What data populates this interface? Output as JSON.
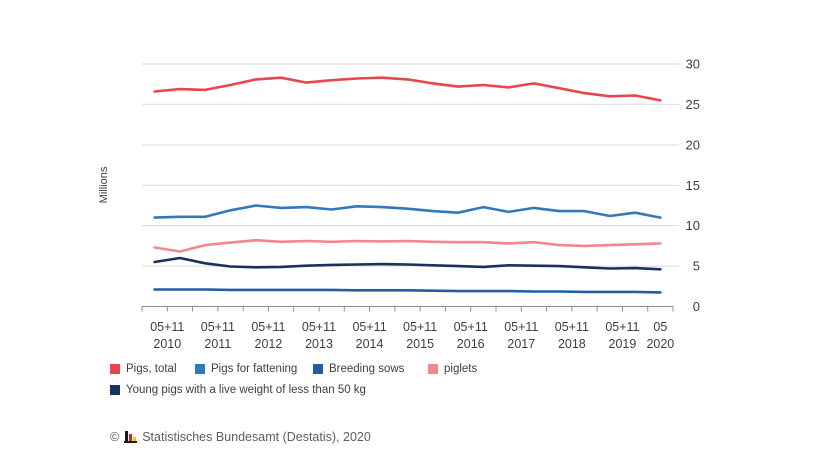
{
  "chart_data": {
    "type": "line",
    "title": "",
    "ylabel": "Millions",
    "ylim": [
      0,
      30
    ],
    "yticks": [
      0,
      5,
      10,
      15,
      20,
      25,
      30
    ],
    "grid": true,
    "legend_position": "bottom-left",
    "x_tick_groups": [
      {
        "period": "05+11",
        "year": "2010",
        "span": 2
      },
      {
        "period": "05+11",
        "year": "2011",
        "span": 2
      },
      {
        "period": "05+11",
        "year": "2012",
        "span": 2
      },
      {
        "period": "05+11",
        "year": "2013",
        "span": 2
      },
      {
        "period": "05+11",
        "year": "2014",
        "span": 2
      },
      {
        "period": "05+11",
        "year": "2015",
        "span": 2
      },
      {
        "period": "05+11",
        "year": "2016",
        "span": 2
      },
      {
        "period": "05+11",
        "year": "2017",
        "span": 2
      },
      {
        "period": "05+11",
        "year": "2018",
        "span": 2
      },
      {
        "period": "05+11",
        "year": "2019",
        "span": 2
      },
      {
        "period": "05",
        "year": "2020",
        "span": 1
      }
    ],
    "x": [
      "05 2010",
      "11 2010",
      "05 2011",
      "11 2011",
      "05 2012",
      "11 2012",
      "05 2013",
      "11 2013",
      "05 2014",
      "11 2014",
      "05 2015",
      "11 2015",
      "05 2016",
      "11 2016",
      "05 2017",
      "11 2017",
      "05 2018",
      "11 2018",
      "05 2019",
      "11 2019",
      "05 2020"
    ],
    "series": [
      {
        "name": "Pigs, total",
        "color": "#e8464d",
        "values": [
          26.6,
          26.9,
          26.8,
          27.4,
          28.1,
          28.3,
          27.7,
          28.0,
          28.2,
          28.3,
          28.1,
          27.6,
          27.2,
          27.4,
          27.1,
          27.6,
          27.0,
          26.4,
          26.0,
          26.1,
          25.5
        ]
      },
      {
        "name": "Pigs for fattening",
        "color": "#3377bc",
        "values": [
          11.0,
          11.1,
          11.1,
          11.9,
          12.5,
          12.2,
          12.3,
          12.0,
          12.4,
          12.3,
          12.1,
          11.8,
          11.6,
          12.3,
          11.7,
          12.2,
          11.8,
          11.8,
          11.2,
          11.6,
          11.0
        ]
      },
      {
        "name": "Breeding sows",
        "color": "#1f5fa2",
        "values": [
          2.1,
          2.1,
          2.1,
          2.05,
          2.05,
          2.05,
          2.05,
          2.05,
          2.0,
          2.0,
          2.0,
          1.95,
          1.9,
          1.9,
          1.9,
          1.85,
          1.85,
          1.8,
          1.8,
          1.8,
          1.75
        ]
      },
      {
        "name": "piglets",
        "color": "#f4878e",
        "values": [
          7.3,
          6.8,
          7.6,
          7.9,
          8.2,
          8.0,
          8.1,
          8.0,
          8.1,
          8.05,
          8.1,
          8.0,
          7.95,
          7.95,
          7.8,
          7.95,
          7.6,
          7.5,
          7.6,
          7.7,
          7.8
        ]
      },
      {
        "name": "Young pigs with a live weight of less than 50 kg",
        "color": "#17335d",
        "values": [
          5.5,
          6.0,
          5.35,
          4.95,
          4.85,
          4.9,
          5.05,
          5.15,
          5.2,
          5.25,
          5.2,
          5.1,
          5.0,
          4.9,
          5.1,
          5.05,
          5.0,
          4.85,
          4.7,
          4.75,
          4.6
        ]
      }
    ],
    "colors": {
      "gridline": "#d9d9d9",
      "axis": "#8c8c8c",
      "tick_text": "#404040"
    }
  },
  "footer": {
    "copyright_symbol": "©",
    "source": "Statistisches Bundesamt (Destatis), 2020",
    "logo_colors": {
      "black": "#1a1a1a",
      "red": "#d2232a",
      "gold": "#ffcc00"
    }
  }
}
